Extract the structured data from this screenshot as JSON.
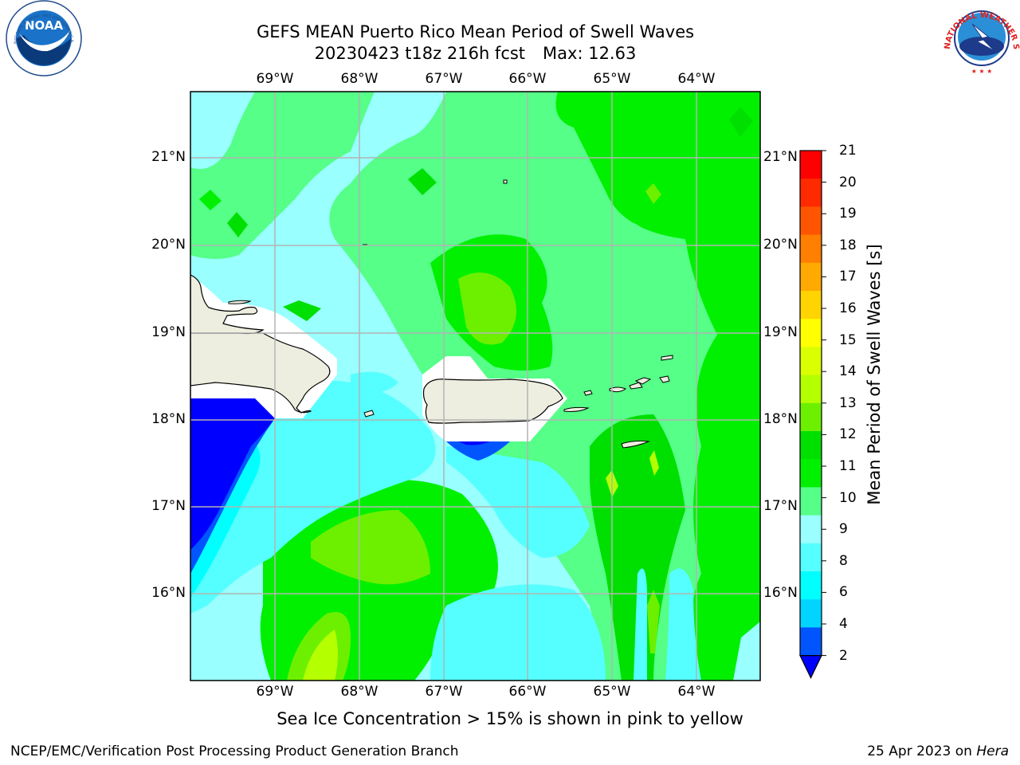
{
  "header": {
    "title_line1": "GEFS MEAN Puerto Rico Mean Period of Swell Waves",
    "title_line2_run": "20230423 t18z 216h fcst",
    "title_line2_max": "Max: 12.63"
  },
  "logos": {
    "noaa_text": "NOAA",
    "noaa_ring_text": "NATIONAL OCEANIC AND ATMOSPHERIC ADMINISTRATION · U.S. DEPARTMENT OF COMMERCE",
    "nws_ring_text": "NATIONAL WEATHER SERVICE"
  },
  "map": {
    "lon_labels": [
      "69°W",
      "68°W",
      "67°W",
      "66°W",
      "65°W",
      "64°W"
    ],
    "lat_labels": [
      "21°N",
      "20°N",
      "19°N",
      "18°N",
      "17°N",
      "16°N"
    ],
    "extent": {
      "lon_min": -70.0,
      "lon_max": -63.25,
      "lat_min": 15.0,
      "lat_max": 21.75
    }
  },
  "colorbar": {
    "label": "Mean Period of Swell Waves [s]",
    "ticks": [
      "21",
      "20",
      "19",
      "18",
      "17",
      "16",
      "15",
      "14",
      "13",
      "12",
      "11",
      "10",
      "9",
      "8",
      "6",
      "4",
      "2"
    ],
    "colors": [
      "#ff0000",
      "#ff2a00",
      "#ff5500",
      "#ff7f00",
      "#ffaa00",
      "#ffd400",
      "#ffff00",
      "#d9ff00",
      "#b4ff00",
      "#6cf000",
      "#00e000",
      "#00f000",
      "#55ff88",
      "#99ffff",
      "#55ffff",
      "#00ffff",
      "#00d4ff",
      "#0055ff",
      "#0000ff"
    ]
  },
  "footer": {
    "note": "Sea Ice Concentration > 15% is shown in pink to yellow",
    "credit": "NCEP/EMC/Verification Post Processing Product Generation Branch",
    "date": "25 Apr 2023 on",
    "host": "Hera"
  }
}
